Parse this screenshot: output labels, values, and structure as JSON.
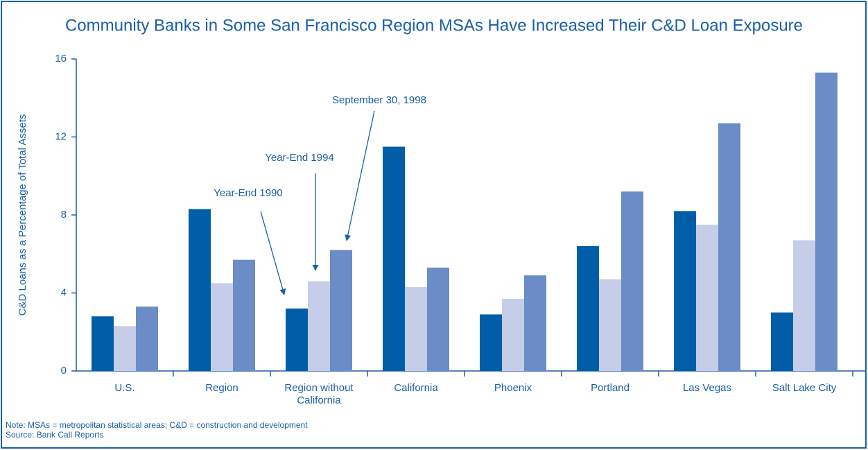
{
  "chart_data": {
    "type": "bar",
    "title": "Community Banks in Some San Francisco Region MSAs Have Increased Their C&D Loan Exposure",
    "ylabel": "C&D Loans as a Percentage of Total Assets",
    "categories": [
      "U.S.",
      "Region",
      "Region without California",
      "California",
      "Phoenix",
      "Portland",
      "Las Vegas",
      "Salt Lake City"
    ],
    "series": [
      {
        "name": "Year-End 1990",
        "color": "#005ea8",
        "values": [
          2.8,
          8.3,
          3.2,
          11.5,
          2.9,
          6.4,
          8.2,
          3.0
        ]
      },
      {
        "name": "Year-End 1994",
        "color": "#c5cde8",
        "values": [
          2.3,
          4.5,
          4.6,
          4.3,
          3.7,
          4.7,
          7.5,
          6.7
        ]
      },
      {
        "name": "September 30, 1998",
        "color": "#6b8cc7",
        "values": [
          3.3,
          5.7,
          6.2,
          5.3,
          4.9,
          9.2,
          12.7,
          15.3
        ]
      }
    ],
    "ylim": [
      0,
      16
    ],
    "yticks": [
      0,
      4,
      8,
      12,
      16
    ],
    "notes": [
      "Note: MSAs = metropolitan statistical areas; C&D = construction and development",
      "Source: Bank Call Reports"
    ]
  }
}
